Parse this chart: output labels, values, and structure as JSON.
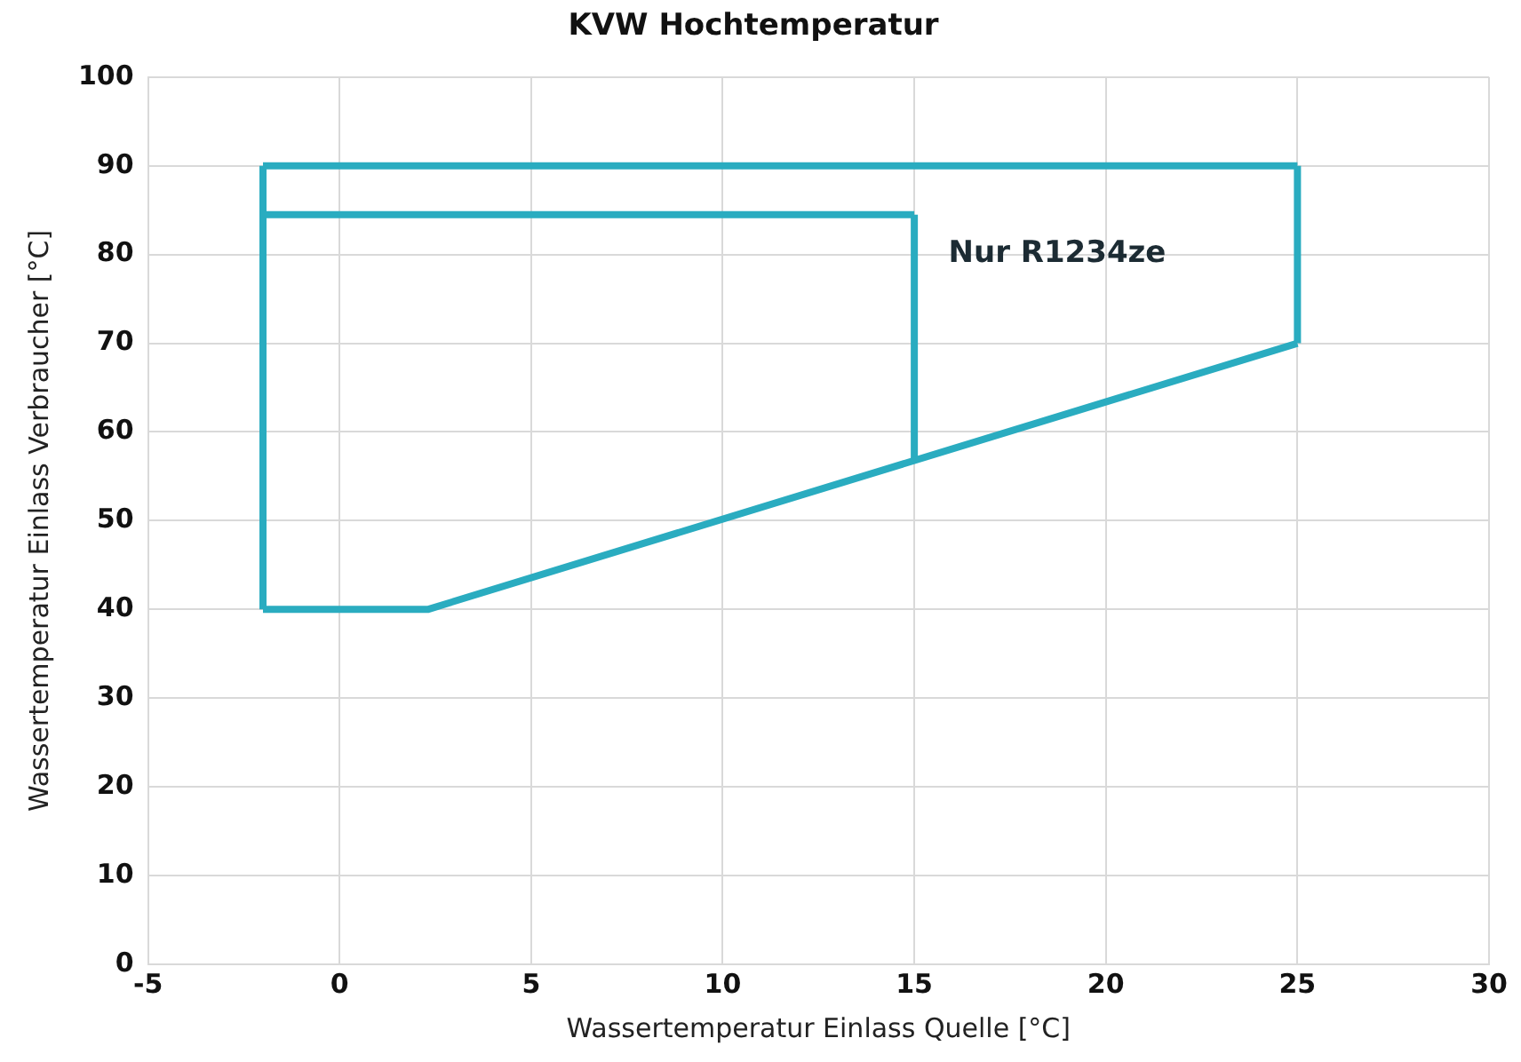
{
  "chart_data": {
    "type": "line",
    "title": "KVW Hochtemperatur",
    "xlabel": "Wassertemperatur Einlass Quelle [°C]",
    "ylabel": "Wassertemperatur Einlass Verbraucher [°C]",
    "series": [
      {
        "color": "#2aacc0",
        "x": [
          -2,
          25
        ],
        "values": [
          90,
          90
        ]
      },
      {
        "color": "#2aacc0",
        "x": [
          -2,
          2.3,
          25
        ],
        "values": [
          40,
          40,
          70
        ]
      },
      {
        "color": "#2aacc0",
        "x": [
          -2,
          15
        ],
        "values": [
          84.5,
          84.5
        ]
      },
      {
        "color": "#2aacc0",
        "x": [
          -2,
          -2
        ],
        "values": [
          40,
          90
        ]
      },
      {
        "color": "#2aacc0",
        "x": [
          25,
          25
        ],
        "values": [
          70,
          90
        ]
      },
      {
        "color": "#2aacc0",
        "x": [
          15,
          15
        ],
        "values": [
          57,
          84.5
        ]
      }
    ],
    "xlim": [
      -5,
      30
    ],
    "xticks": [
      -5,
      0,
      5,
      10,
      15,
      20,
      25,
      30
    ],
    "ylim": [
      0,
      100
    ],
    "yticks": [
      0,
      10,
      20,
      30,
      40,
      50,
      60,
      70,
      80,
      90,
      100
    ],
    "grid": true,
    "legend": false,
    "marker": "none",
    "line_style": "solid",
    "annotations": [
      "Nur R1234ze"
    ]
  }
}
